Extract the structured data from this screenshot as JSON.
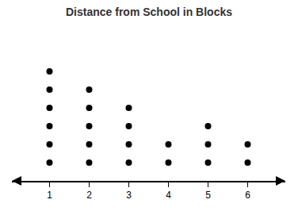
{
  "chart_data": {
    "type": "dot",
    "title": "Distance from School in Blocks",
    "x": [
      1,
      2,
      3,
      4,
      5,
      6
    ],
    "values": [
      6,
      5,
      4,
      2,
      3,
      2
    ],
    "color": "#000000",
    "xlim": [
      0.05,
      6.95
    ],
    "xticks": [
      1,
      2,
      3,
      4,
      5,
      6
    ],
    "ylim": [
      0,
      8
    ],
    "grid": false,
    "tick_labels": "x"
  }
}
